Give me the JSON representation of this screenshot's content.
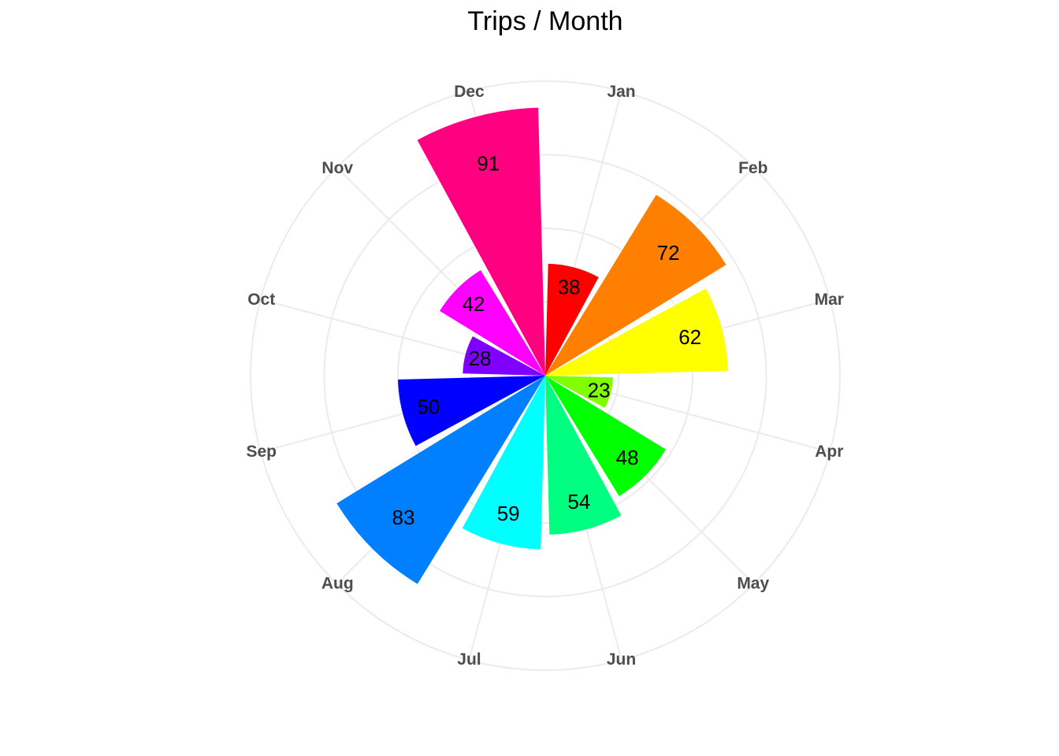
{
  "chart_data": {
    "type": "bar",
    "coord": "polar",
    "title": "Trips / Month",
    "categories": [
      "Jan",
      "Feb",
      "Mar",
      "Apr",
      "May",
      "Jun",
      "Jul",
      "Aug",
      "Sep",
      "Oct",
      "Nov",
      "Dec"
    ],
    "values": [
      38,
      72,
      62,
      23,
      48,
      54,
      59,
      83,
      50,
      28,
      42,
      91
    ],
    "colors": [
      "#FF0000",
      "#FF8000",
      "#FFFF00",
      "#80FF00",
      "#00FF00",
      "#00FF80",
      "#00FFFF",
      "#0080FF",
      "#0000FF",
      "#8000FF",
      "#FF00FF",
      "#FF0080"
    ],
    "ylim": [
      0,
      100
    ],
    "grid": true,
    "legend": "none",
    "data_labels": true
  }
}
